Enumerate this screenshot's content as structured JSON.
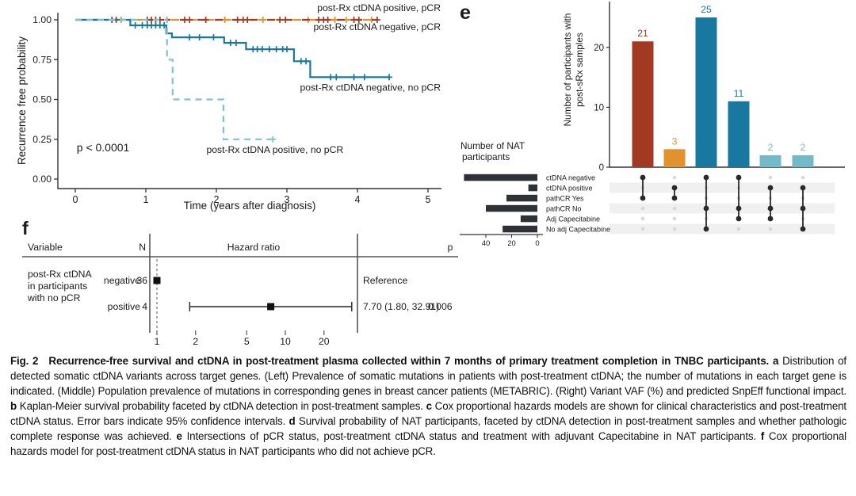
{
  "colors": {
    "dark_red": "#A23A23",
    "orange": "#E2912F",
    "blue": "#1878A0",
    "light_blue": "#7FC2CE",
    "teal_bar": "#74B9C7",
    "axis": "#333333",
    "set_bar": "#2E3236",
    "dot_active": "#2A2A2A",
    "dot_inactive": "#D8D8D8",
    "stripe": "#F0F0F0"
  },
  "chart_data": [
    {
      "id": "km",
      "type": "line",
      "panel_label": "",
      "xlabel": "Time (years after diagnosis)",
      "ylabel": "Recurrence free probability",
      "xlim": [
        0,
        5
      ],
      "ylim": [
        0,
        1
      ],
      "xticks": [
        0,
        1,
        2,
        3,
        4,
        5
      ],
      "yticks": [
        0,
        0.25,
        0.5,
        0.75,
        1
      ],
      "ytick_labels": [
        "0.00",
        "0.25",
        "0.50",
        "0.75",
        "1.00"
      ],
      "annotation": {
        "text": "p < 0.0001",
        "x": 0.02,
        "y": 0.175
      },
      "series": [
        {
          "name": "post-Rx ctDNA positive, pCR",
          "color": "#E2912F",
          "dashed": true,
          "dash_pattern": "10 12",
          "dash_offset": 11,
          "steps": [
            [
              0,
              1
            ],
            [
              4.2,
              1
            ]
          ],
          "censors": [
            [
              0.65,
              1
            ],
            [
              1.3,
              1
            ],
            [
              2.12,
              1
            ],
            [
              2.66,
              1
            ],
            [
              3.3,
              1
            ],
            [
              3.68,
              1
            ],
            [
              3.84,
              1
            ],
            [
              4.2,
              1
            ]
          ],
          "label_anchor": [
            5.18,
            1.075
          ],
          "label_align": "end"
        },
        {
          "name": "post-Rx ctDNA negative, pCR",
          "color": "#A23A23",
          "dashed": true,
          "dash_pattern": "10 12",
          "dash_offset": 0,
          "steps": [
            [
              0,
              1
            ],
            [
              4.28,
              1
            ]
          ],
          "censors": [
            [
              0.52,
              1
            ],
            [
              0.58,
              1
            ],
            [
              1.02,
              1
            ],
            [
              1.08,
              1
            ],
            [
              1.14,
              1
            ],
            [
              1.2,
              1
            ],
            [
              1.55,
              1
            ],
            [
              1.62,
              1
            ],
            [
              1.85,
              1
            ],
            [
              2.3,
              1
            ],
            [
              2.38,
              1
            ],
            [
              2.44,
              1
            ],
            [
              2.9,
              1
            ],
            [
              2.98,
              1
            ],
            [
              3.45,
              1
            ],
            [
              3.52,
              1
            ],
            [
              3.58,
              1
            ],
            [
              3.95,
              1
            ],
            [
              4.02,
              1
            ],
            [
              4.28,
              1
            ]
          ],
          "label_anchor": [
            5.18,
            0.955
          ],
          "label_align": "end"
        },
        {
          "name": "post-Rx ctDNA negative, no pCR",
          "color": "#1878A0",
          "dashed": false,
          "dash_pattern": "",
          "dash_offset": 0,
          "steps": [
            [
              0,
              1
            ],
            [
              0.78,
              1
            ],
            [
              0.78,
              0.965
            ],
            [
              1.29,
              0.965
            ],
            [
              1.29,
              0.915
            ],
            [
              1.37,
              0.915
            ],
            [
              1.37,
              0.89
            ],
            [
              2.11,
              0.89
            ],
            [
              2.11,
              0.855
            ],
            [
              2.42,
              0.855
            ],
            [
              2.42,
              0.815
            ],
            [
              3.1,
              0.815
            ],
            [
              3.1,
              0.74
            ],
            [
              3.33,
              0.74
            ],
            [
              3.33,
              0.64
            ],
            [
              4.45,
              0.64
            ]
          ],
          "censors": [
            [
              0.85,
              0.965
            ],
            [
              0.95,
              0.965
            ],
            [
              1.02,
              0.965
            ],
            [
              1.08,
              0.965
            ],
            [
              1.14,
              0.965
            ],
            [
              1.2,
              0.965
            ],
            [
              1.26,
              0.965
            ],
            [
              1.62,
              0.89
            ],
            [
              1.76,
              0.89
            ],
            [
              1.96,
              0.89
            ],
            [
              2.2,
              0.855
            ],
            [
              2.28,
              0.855
            ],
            [
              2.52,
              0.815
            ],
            [
              2.58,
              0.815
            ],
            [
              2.65,
              0.815
            ],
            [
              2.75,
              0.815
            ],
            [
              2.85,
              0.815
            ],
            [
              2.94,
              0.815
            ],
            [
              3.0,
              0.815
            ],
            [
              3.2,
              0.74
            ],
            [
              3.27,
              0.74
            ],
            [
              3.62,
              0.64
            ],
            [
              3.7,
              0.64
            ],
            [
              3.95,
              0.64
            ],
            [
              4.1,
              0.64
            ],
            [
              4.45,
              0.64
            ]
          ],
          "label_anchor": [
            5.18,
            0.575
          ],
          "label_align": "end"
        },
        {
          "name": "post-Rx ctDNA positive, no pCR",
          "color": "#7FC2CE",
          "dashed": true,
          "dash_pattern": "8 6",
          "dash_offset": 0,
          "steps": [
            [
              0,
              1
            ],
            [
              1.3,
              1
            ],
            [
              1.3,
              0.75
            ],
            [
              1.38,
              0.75
            ],
            [
              1.38,
              0.5
            ],
            [
              2.1,
              0.5
            ],
            [
              2.1,
              0.25
            ],
            [
              2.8,
              0.25
            ]
          ],
          "censors": [
            [
              2.8,
              0.25
            ]
          ],
          "label_anchor": [
            3.8,
            0.185
          ],
          "label_align": "end"
        }
      ]
    },
    {
      "id": "upset",
      "type": "bar",
      "panel_label": "e",
      "ylabel_lines": [
        "Number of participants with",
        "post-sRx samples"
      ],
      "yticks": [
        0,
        10,
        20
      ],
      "bars": [
        {
          "value": 21,
          "color": "#A23A23"
        },
        {
          "value": 3,
          "color": "#E2912F"
        },
        {
          "value": 25,
          "color": "#1878A0"
        },
        {
          "value": 11,
          "color": "#1878A0"
        },
        {
          "value": 2,
          "color": "#74B9C7"
        },
        {
          "value": 2,
          "color": "#74B9C7"
        }
      ],
      "memberships": [
        [
          0,
          2
        ],
        [
          1,
          2
        ],
        [
          0,
          3,
          5
        ],
        [
          0,
          3,
          4
        ],
        [
          1,
          3,
          4
        ],
        [
          1,
          3,
          5
        ]
      ],
      "sets": {
        "title_lines": [
          "Number of NAT",
          "participants"
        ],
        "axis_ticks": [
          40,
          20,
          0
        ],
        "rows": [
          {
            "label": "ctDNA negative",
            "size": 57
          },
          {
            "label": "ctDNA positive",
            "size": 7
          },
          {
            "label": "pathCR Yes",
            "size": 24
          },
          {
            "label": "pathCR No",
            "size": 40
          },
          {
            "label": "Adj Capecitabine",
            "size": 13
          },
          {
            "label": "No adj Capecitabine",
            "size": 27
          }
        ]
      }
    },
    {
      "id": "forest",
      "type": "forest",
      "panel_label": "f",
      "columns": {
        "variable": "Variable",
        "n": "N",
        "hazard": "Hazard ratio",
        "p": "p"
      },
      "variable_lines": [
        "post-Rx ctDNA",
        "in participants",
        "with no pCR"
      ],
      "axis_ticks": [
        1,
        2,
        5,
        10,
        20
      ],
      "rows": [
        {
          "level": "negative",
          "n": "36",
          "hr": 1,
          "ci": null,
          "estimate_text": "Reference",
          "p_text": ""
        },
        {
          "level": "positive",
          "n": "4",
          "hr": 7.7,
          "ci": [
            1.8,
            32.91
          ],
          "estimate_text": "7.70 (1.80, 32.91)",
          "p_text": "0.006"
        }
      ]
    }
  ],
  "caption": {
    "segments": [
      {
        "text": "Fig. 2  Recurrence-free survival and ctDNA in post-treatment plasma collected within 7 months of primary treatment completion in TNBC participants. ",
        "bold": true
      },
      {
        "text": "a",
        "bold": true
      },
      {
        "text": " Distribution of detected somatic ctDNA variants across target genes. (Left) Prevalence of somatic mutations in patients with post-treatment ctDNA; the number of mutations in each target gene is indicated. (Middle) Population prevalence of mutations in corresponding genes in breast cancer patients (METABRIC). (Right) Variant VAF (%) and predicted SnpEff functional impact. ",
        "bold": false
      },
      {
        "text": "b",
        "bold": true
      },
      {
        "text": " Kaplan-Meier survival probability faceted by ctDNA detection in post-treatment samples. ",
        "bold": false
      },
      {
        "text": "c",
        "bold": true
      },
      {
        "text": " Cox proportional hazards models are shown for clinical characteristics and post-treatment ctDNA status. Error bars indicate 95% confidence intervals. ",
        "bold": false
      },
      {
        "text": "d",
        "bold": true
      },
      {
        "text": " Survival probability of NAT participants, faceted by ctDNA detection in post-treatment samples and whether pathologic complete response was achieved. ",
        "bold": false
      },
      {
        "text": "e",
        "bold": true
      },
      {
        "text": " Intersections of pCR status, post-treatment ctDNA status and treatment with adjuvant Capecitabine in NAT participants. ",
        "bold": false
      },
      {
        "text": "f",
        "bold": true
      },
      {
        "text": " Cox proportional hazards model for post-treatment ctDNA status in NAT participants who did not achieve pCR.",
        "bold": false
      }
    ]
  }
}
